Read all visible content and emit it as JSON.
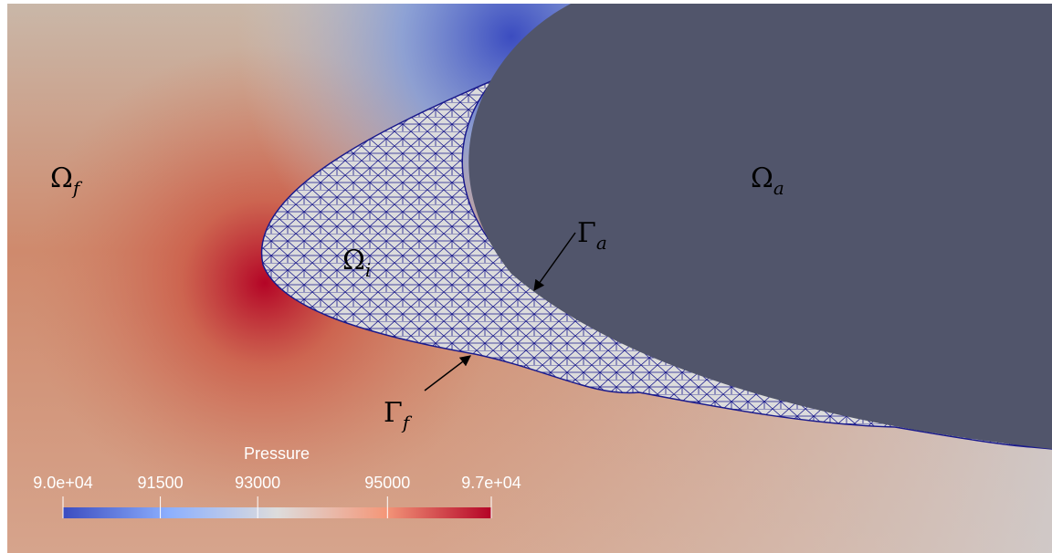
{
  "regions": [
    {
      "symbol": "Ω",
      "subscript": "f"
    },
    {
      "symbol": "Ω",
      "subscript": "a"
    },
    {
      "symbol": "Ω",
      "subscript": "i"
    },
    {
      "symbol": "Γ",
      "subscript": "a"
    },
    {
      "symbol": "Γ",
      "subscript": "f"
    }
  ],
  "colorbar": {
    "title": "Pressure",
    "range": [
      90000,
      96600
    ],
    "ticks": [
      {
        "value": 90000,
        "label": "9.0e+04"
      },
      91500,
      93000,
      95000,
      {
        "value": 96600,
        "label": "9.7e+04"
      }
    ]
  }
}
